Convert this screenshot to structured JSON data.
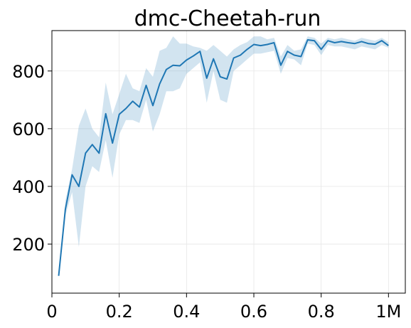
{
  "chart_data": {
    "type": "line",
    "title": "dmc-Cheetah-run",
    "xlabel": "",
    "ylabel": "",
    "xlim": [
      0,
      1.05
    ],
    "ylim": [
      30,
      940
    ],
    "x_ticks": [
      0,
      0.2,
      0.4,
      0.6,
      0.8,
      1.0
    ],
    "x_tick_labels": [
      "0",
      "0.2",
      "0.4",
      "0.6",
      "0.8",
      "1M"
    ],
    "y_ticks": [
      200,
      400,
      600,
      800
    ],
    "y_tick_labels": [
      "200",
      "400",
      "600",
      "800"
    ],
    "grid": true,
    "colors": {
      "line": "#1f77b4",
      "band": "#1f77b4"
    },
    "series": [
      {
        "x": [
          0.02,
          0.04,
          0.06,
          0.08,
          0.1,
          0.12,
          0.14,
          0.16,
          0.18,
          0.2,
          0.22,
          0.24,
          0.26,
          0.28,
          0.3,
          0.32,
          0.34,
          0.36,
          0.38,
          0.4,
          0.42,
          0.44,
          0.46,
          0.48,
          0.5,
          0.52,
          0.54,
          0.56,
          0.58,
          0.6,
          0.62,
          0.64,
          0.66,
          0.68,
          0.7,
          0.72,
          0.74,
          0.76,
          0.78,
          0.8,
          0.82,
          0.84,
          0.86,
          0.88,
          0.9,
          0.92,
          0.94,
          0.96,
          0.98,
          1.0
        ],
        "y": [
          90,
          320,
          440,
          400,
          515,
          545,
          515,
          652,
          550,
          650,
          670,
          695,
          675,
          750,
          680,
          755,
          805,
          820,
          818,
          838,
          852,
          868,
          775,
          842,
          780,
          772,
          845,
          855,
          875,
          892,
          888,
          892,
          898,
          820,
          868,
          855,
          850,
          908,
          905,
          875,
          905,
          898,
          902,
          898,
          895,
          902,
          895,
          893,
          905,
          888
        ],
        "lower": [
          88,
          300,
          380,
          190,
          400,
          470,
          450,
          560,
          430,
          580,
          630,
          630,
          620,
          700,
          590,
          650,
          730,
          730,
          740,
          790,
          810,
          830,
          690,
          800,
          700,
          690,
          800,
          820,
          840,
          860,
          860,
          865,
          870,
          790,
          845,
          840,
          820,
          895,
          890,
          855,
          890,
          885,
          885,
          880,
          875,
          885,
          880,
          875,
          890,
          880
        ],
        "upper": [
          92,
          350,
          460,
          610,
          670,
          600,
          570,
          760,
          650,
          720,
          790,
          740,
          730,
          810,
          780,
          870,
          880,
          920,
          895,
          895,
          885,
          880,
          870,
          890,
          870,
          850,
          875,
          890,
          900,
          920,
          920,
          910,
          915,
          850,
          890,
          870,
          875,
          920,
          915,
          895,
          915,
          910,
          915,
          910,
          905,
          915,
          910,
          905,
          915,
          900
        ]
      }
    ]
  }
}
